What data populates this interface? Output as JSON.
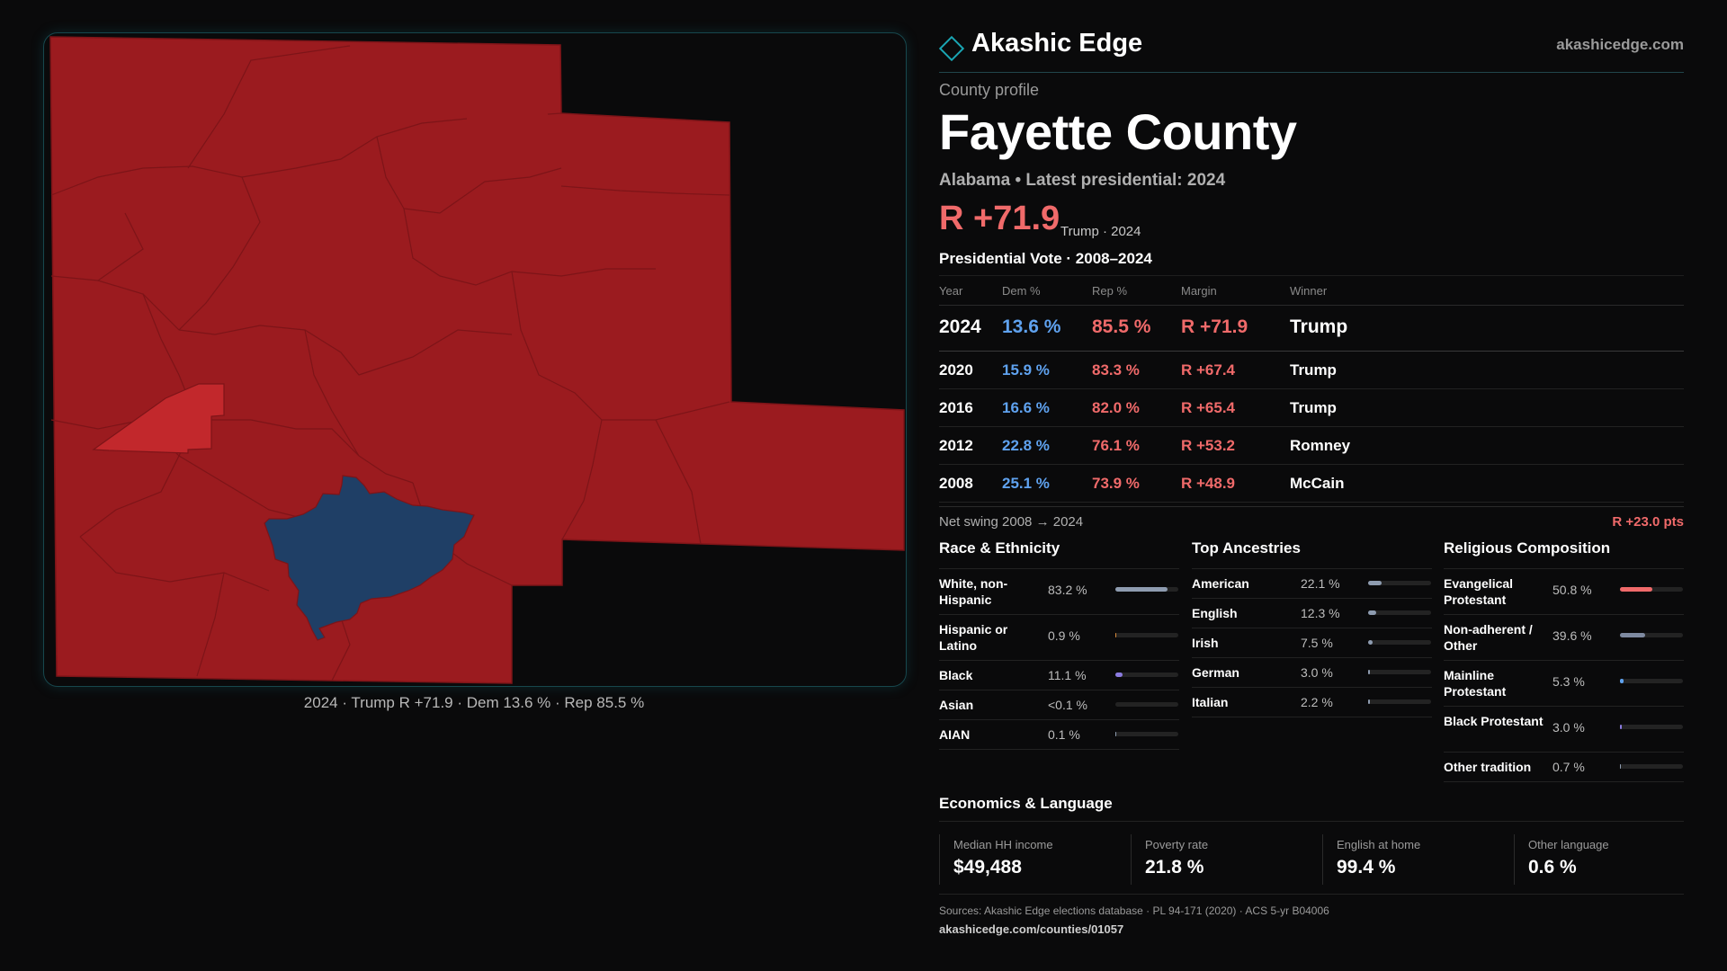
{
  "header": {
    "brand": "Akashic Edge",
    "site": "akashicedge.com",
    "logo_icon": "diamond-outline-icon"
  },
  "profile": {
    "eyebrow": "County profile",
    "county": "Fayette County",
    "subtitle": "Alabama • Latest presidential: 2024",
    "margin": "R +71.9",
    "margin_note": "Trump · 2024"
  },
  "map": {
    "caption": "2024 · Trump R +71.9 · Dem 13.6 % · Rep 85.5 %",
    "colors": {
      "rep": "#9b1b1f",
      "rep_light": "#c2282c",
      "dem": "#1f3f66",
      "border": "#7d1418"
    }
  },
  "vote": {
    "title": "Presidential Vote · 2008–2024",
    "headers": {
      "year": "Year",
      "dem": "Dem %",
      "rep": "Rep %",
      "margin": "Margin",
      "winner": "Winner"
    },
    "rows": [
      {
        "year": "2024",
        "dem": "13.6 %",
        "rep": "85.5 %",
        "margin": "R +71.9",
        "winner": "Trump"
      },
      {
        "year": "2020",
        "dem": "15.9 %",
        "rep": "83.3 %",
        "margin": "R +67.4",
        "winner": "Trump"
      },
      {
        "year": "2016",
        "dem": "16.6 %",
        "rep": "82.0 %",
        "margin": "R +65.4",
        "winner": "Trump"
      },
      {
        "year": "2012",
        "dem": "22.8 %",
        "rep": "76.1 %",
        "margin": "R +53.2",
        "winner": "Romney"
      },
      {
        "year": "2008",
        "dem": "25.1 %",
        "rep": "73.9 %",
        "margin": "R +48.9",
        "winner": "McCain"
      }
    ],
    "swing_label": "Net swing 2008 → 2024",
    "swing_value": "R +23.0 pts"
  },
  "race": {
    "title": "Race & Ethnicity",
    "items": [
      {
        "label": "White, non-Hispanic",
        "value": "83.2 %",
        "fraction": 0.832,
        "color": "#8e9cb0"
      },
      {
        "label": "Hispanic or Latino",
        "value": "0.9 %",
        "fraction": 0.009,
        "color": "#d98a3a"
      },
      {
        "label": "Black",
        "value": "11.1 %",
        "fraction": 0.111,
        "color": "#8b7be0"
      },
      {
        "label": "Asian",
        "value": "<0.1 %",
        "fraction": 0.0,
        "color": "#8e9cb0"
      },
      {
        "label": "AIAN",
        "value": "0.1 %",
        "fraction": 0.001,
        "color": "#8e9cb0"
      }
    ]
  },
  "ancestry": {
    "title": "Top Ancestries",
    "items": [
      {
        "label": "American",
        "value": "22.1 %",
        "fraction": 0.221,
        "color": "#8e9cb0"
      },
      {
        "label": "English",
        "value": "12.3 %",
        "fraction": 0.123,
        "color": "#8e9cb0"
      },
      {
        "label": "Irish",
        "value": "7.5 %",
        "fraction": 0.075,
        "color": "#8e9cb0"
      },
      {
        "label": "German",
        "value": "3.0 %",
        "fraction": 0.03,
        "color": "#8e9cb0"
      },
      {
        "label": "Italian",
        "value": "2.2 %",
        "fraction": 0.022,
        "color": "#8e9cb0"
      }
    ]
  },
  "religion": {
    "title": "Religious Composition",
    "items": [
      {
        "label": "Evangelical Protestant",
        "value": "50.8 %",
        "fraction": 0.508,
        "color": "#f06a6a"
      },
      {
        "label": "Non-adherent / Other",
        "value": "39.6 %",
        "fraction": 0.396,
        "color": "#7e8aa0"
      },
      {
        "label": "Mainline Protestant",
        "value": "5.3 %",
        "fraction": 0.053,
        "color": "#5fa2ef"
      },
      {
        "label": "Black Protestant",
        "value": "3.0 %",
        "fraction": 0.03,
        "color": "#8b7be0"
      },
      {
        "label": "Other tradition",
        "value": "0.7 %",
        "fraction": 0.007,
        "color": "#8e9cb0"
      }
    ]
  },
  "economics": {
    "title": "Economics & Language",
    "cells": [
      {
        "label": "Median HH income",
        "value": "$49,488"
      },
      {
        "label": "Poverty rate",
        "value": "21.8 %"
      },
      {
        "label": "English at home",
        "value": "99.4 %"
      },
      {
        "label": "Other language",
        "value": "0.6 %"
      }
    ]
  },
  "footer": {
    "sources": "Sources: Akashic Edge elections database · PL 94-171 (2020) · ACS 5-yr B04006",
    "url": "akashicedge.com/counties/01057"
  }
}
